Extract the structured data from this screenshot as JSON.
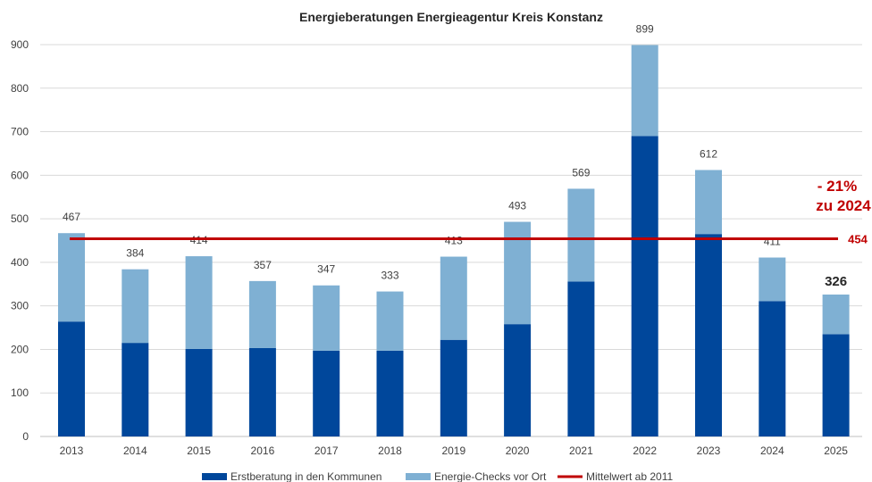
{
  "chart_data": {
    "type": "bar",
    "stacked": true,
    "title": "Energieberatungen Energieagentur Kreis Konstanz",
    "categories": [
      "2013",
      "2014",
      "2015",
      "2016",
      "2017",
      "2018",
      "2019",
      "2020",
      "2021",
      "2022",
      "2023",
      "2024",
      "2025"
    ],
    "series": [
      {
        "name": "Erstberatung in den Kommunen",
        "color": "#00479b",
        "values": [
          264,
          215,
          201,
          203,
          197,
          197,
          222,
          258,
          356,
          690,
          465,
          311,
          235
        ]
      },
      {
        "name": "Energie-Checks vor Ort",
        "color": "#7fb0d3",
        "values": [
          203,
          169,
          213,
          154,
          150,
          136,
          191,
          235,
          213,
          209,
          147,
          100,
          91
        ]
      }
    ],
    "totals": [
      467,
      384,
      414,
      357,
      347,
      333,
      413,
      493,
      569,
      899,
      612,
      411,
      326
    ],
    "totals_labels": [
      "467",
      "384",
      "414",
      "357",
      "347",
      "333",
      "413",
      "493",
      "569",
      "899",
      "612",
      "411",
      "326"
    ],
    "reference_line": {
      "name": "Mittelwert ab 2011",
      "value": 454,
      "label": "454",
      "color": "#c00000"
    },
    "annotation": {
      "line1": "- 21%",
      "line2": "zu 2024"
    },
    "ylim": [
      0,
      900
    ],
    "yticks": [
      0,
      100,
      200,
      300,
      400,
      500,
      600,
      700,
      800,
      900
    ],
    "ytick_labels": [
      "0",
      "100",
      "200",
      "300",
      "400",
      "500",
      "600",
      "700",
      "800",
      "900"
    ],
    "grid": true,
    "legend_position": "bottom"
  }
}
